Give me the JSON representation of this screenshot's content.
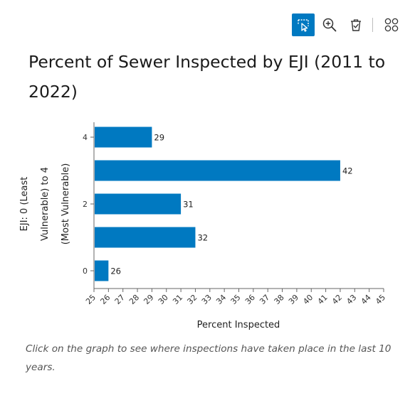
{
  "toolbar": {
    "items": [
      {
        "name": "select-icon",
        "active": true
      },
      {
        "name": "zoom-in-icon",
        "active": false
      },
      {
        "name": "clear-selection-icon",
        "active": false
      },
      {
        "name": "options-grid-icon",
        "active": false
      }
    ]
  },
  "colors": {
    "bar": "#0079c1",
    "active_tool": "#0079c1"
  },
  "chart_data": {
    "type": "bar",
    "orientation": "horizontal",
    "title": "Percent of Sewer Inspected by EJI (2011 to 2022)",
    "xlabel": "Percent Inspected",
    "ylabel_lines": [
      "EJI: 0 (Least",
      "Vulnerable) to 4",
      "(Most Vulnerable)"
    ],
    "xlim": [
      25,
      45
    ],
    "ylim": [
      0,
      4
    ],
    "x_ticks": [
      25,
      26,
      27,
      28,
      29,
      30,
      31,
      32,
      33,
      34,
      35,
      36,
      37,
      38,
      39,
      40,
      41,
      42,
      43,
      44,
      45
    ],
    "y_ticks": [
      0,
      2,
      4
    ],
    "bars": [
      {
        "category": 4,
        "value": 29
      },
      {
        "category": 3,
        "value": 42
      },
      {
        "category": 2,
        "value": 31
      },
      {
        "category": 1,
        "value": 32
      },
      {
        "category": 0,
        "value": 26
      }
    ],
    "grid": false,
    "legend": "none"
  },
  "caption": "Click on the graph to see where inspections have taken place in the last 10 years."
}
